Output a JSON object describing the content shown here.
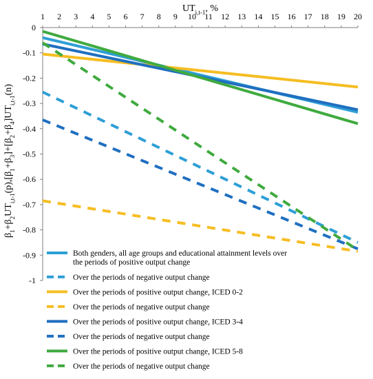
{
  "chart_data": {
    "type": "line",
    "xlabel": "UT_{i,t-1}, %",
    "ylabel": "β1+β2UT_{i,t-1}(p),[β1+β3]+[β2+β4]UT_{i,t-1}(n)",
    "x": [
      1,
      2,
      3,
      4,
      5,
      6,
      7,
      8,
      9,
      10,
      11,
      12,
      13,
      14,
      15,
      16,
      17,
      18,
      19,
      20
    ],
    "xlim": [
      1,
      20
    ],
    "ylim": [
      -1,
      0
    ],
    "y_ticks": [
      0,
      -0.1,
      -0.2,
      -0.3,
      -0.4,
      -0.5,
      -0.6,
      -0.7,
      -0.8,
      -0.9,
      -1
    ],
    "y_tick_labels": [
      "0",
      "-0.1",
      "-0.2",
      "-0.3",
      "-0.4",
      "-0.5",
      "-0.6",
      "-0.7",
      "-0.8",
      "-0.9",
      "-1"
    ],
    "x_axis_position": "top",
    "grid": false,
    "legend_position": "bottom-left",
    "series": [
      {
        "name": "Both genders, all age groups and educational attainment levels over the periods of positive output change",
        "color": "#2e9fd6",
        "dash": "solid",
        "y_start": -0.04,
        "y_end": -0.335
      },
      {
        "name": "Over the periods of negative output change",
        "color": "#2e9fd6",
        "dash": "dashed",
        "y_start": -0.255,
        "y_end": -0.85
      },
      {
        "name": "Over the periods of positive output change, ICED 0-2",
        "color": "#f6bd22",
        "dash": "solid",
        "y_start": -0.105,
        "y_end": -0.235
      },
      {
        "name": "Over the periods of negative output change",
        "color": "#f6bd22",
        "dash": "dashed",
        "y_start": -0.685,
        "y_end": -0.885
      },
      {
        "name": "Over the periods of positive output change, ICED 3-4",
        "color": "#1f6fc0",
        "dash": "solid",
        "y_start": -0.065,
        "y_end": -0.325
      },
      {
        "name": "Over the periods of negative output change",
        "color": "#1f6fc0",
        "dash": "dashed",
        "y_start": -0.365,
        "y_end": -0.875
      },
      {
        "name": "Over the periods of positive output change, ICED 5-8",
        "color": "#3faa3f",
        "dash": "solid",
        "y_start": -0.015,
        "y_end": -0.38
      },
      {
        "name": "Over the periods of negative output change",
        "color": "#3faa3f",
        "dash": "dashed",
        "y_start": -0.06,
        "y_end": -0.88
      }
    ]
  }
}
